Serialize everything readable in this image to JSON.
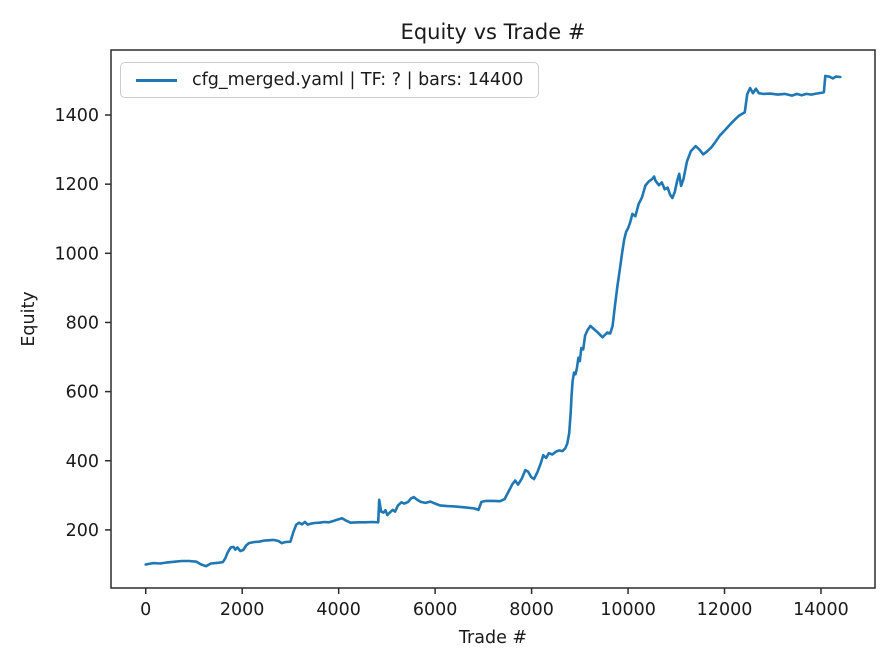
{
  "chart_data": {
    "type": "line",
    "title": "Equity vs Trade #",
    "xlabel": "Trade #",
    "ylabel": "Equity",
    "grid": false,
    "legend": {
      "location": "upper left",
      "entries": [
        "cfg_merged.yaml | TF: ? | bars: 14400"
      ]
    },
    "x_ticks": [
      0,
      2000,
      4000,
      6000,
      8000,
      10000,
      12000,
      14000
    ],
    "y_ticks": [
      200,
      400,
      600,
      800,
      1000,
      1200,
      1400
    ],
    "xlim": [
      -720,
      15120
    ],
    "ylim": [
      32,
      1588
    ],
    "colors": {
      "line": "#1f77b4",
      "axes": "#2b2b2b",
      "text": "#1a1a1a",
      "legend_border": "#cccccc"
    },
    "series": [
      {
        "name": "cfg_merged.yaml | TF: ? | bars: 14400",
        "color": "#1f77b4",
        "points": [
          [
            0,
            100
          ],
          [
            150,
            104
          ],
          [
            300,
            103
          ],
          [
            450,
            106
          ],
          [
            600,
            108
          ],
          [
            750,
            110
          ],
          [
            900,
            110
          ],
          [
            1050,
            108
          ],
          [
            1150,
            100
          ],
          [
            1250,
            95
          ],
          [
            1350,
            103
          ],
          [
            1500,
            105
          ],
          [
            1600,
            107
          ],
          [
            1650,
            118
          ],
          [
            1700,
            135
          ],
          [
            1760,
            149
          ],
          [
            1820,
            151
          ],
          [
            1860,
            143
          ],
          [
            1900,
            149
          ],
          [
            1960,
            139
          ],
          [
            2020,
            142
          ],
          [
            2080,
            155
          ],
          [
            2140,
            162
          ],
          [
            2250,
            165
          ],
          [
            2350,
            166
          ],
          [
            2450,
            169
          ],
          [
            2550,
            170
          ],
          [
            2650,
            171
          ],
          [
            2750,
            168
          ],
          [
            2820,
            162
          ],
          [
            2900,
            165
          ],
          [
            3000,
            166
          ],
          [
            3060,
            193
          ],
          [
            3120,
            215
          ],
          [
            3180,
            221
          ],
          [
            3240,
            216
          ],
          [
            3300,
            223
          ],
          [
            3360,
            215
          ],
          [
            3420,
            218
          ],
          [
            3500,
            220
          ],
          [
            3600,
            221
          ],
          [
            3700,
            223
          ],
          [
            3800,
            222
          ],
          [
            3900,
            226
          ],
          [
            4000,
            231
          ],
          [
            4070,
            234
          ],
          [
            4150,
            227
          ],
          [
            4250,
            221
          ],
          [
            4400,
            222
          ],
          [
            4550,
            222
          ],
          [
            4700,
            223
          ],
          [
            4820,
            222
          ],
          [
            4840,
            287
          ],
          [
            4880,
            253
          ],
          [
            4930,
            250
          ],
          [
            4970,
            257
          ],
          [
            5010,
            243
          ],
          [
            5060,
            250
          ],
          [
            5120,
            258
          ],
          [
            5170,
            253
          ],
          [
            5230,
            271
          ],
          [
            5300,
            280
          ],
          [
            5360,
            276
          ],
          [
            5440,
            281
          ],
          [
            5500,
            291
          ],
          [
            5560,
            295
          ],
          [
            5620,
            288
          ],
          [
            5700,
            281
          ],
          [
            5800,
            278
          ],
          [
            5900,
            282
          ],
          [
            6000,
            276
          ],
          [
            6100,
            271
          ],
          [
            6250,
            269
          ],
          [
            6400,
            268
          ],
          [
            6550,
            266
          ],
          [
            6700,
            264
          ],
          [
            6820,
            262
          ],
          [
            6900,
            258
          ],
          [
            6960,
            281
          ],
          [
            7060,
            284
          ],
          [
            7200,
            284
          ],
          [
            7350,
            283
          ],
          [
            7440,
            289
          ],
          [
            7520,
            310
          ],
          [
            7600,
            332
          ],
          [
            7660,
            343
          ],
          [
            7720,
            331
          ],
          [
            7800,
            349
          ],
          [
            7870,
            373
          ],
          [
            7930,
            368
          ],
          [
            7990,
            353
          ],
          [
            8050,
            347
          ],
          [
            8120,
            367
          ],
          [
            8190,
            393
          ],
          [
            8240,
            416
          ],
          [
            8300,
            408
          ],
          [
            8360,
            422
          ],
          [
            8430,
            418
          ],
          [
            8500,
            426
          ],
          [
            8570,
            430
          ],
          [
            8640,
            428
          ],
          [
            8700,
            436
          ],
          [
            8740,
            450
          ],
          [
            8780,
            480
          ],
          [
            8810,
            540
          ],
          [
            8830,
            590
          ],
          [
            8850,
            630
          ],
          [
            8880,
            655
          ],
          [
            8910,
            650
          ],
          [
            8940,
            668
          ],
          [
            8970,
            698
          ],
          [
            9000,
            688
          ],
          [
            9030,
            726
          ],
          [
            9070,
            722
          ],
          [
            9110,
            762
          ],
          [
            9160,
            778
          ],
          [
            9220,
            790
          ],
          [
            9290,
            781
          ],
          [
            9380,
            770
          ],
          [
            9470,
            757
          ],
          [
            9570,
            771
          ],
          [
            9630,
            768
          ],
          [
            9680,
            790
          ],
          [
            9730,
            850
          ],
          [
            9780,
            905
          ],
          [
            9830,
            955
          ],
          [
            9880,
            1005
          ],
          [
            9920,
            1040
          ],
          [
            9960,
            1062
          ],
          [
            10000,
            1073
          ],
          [
            10040,
            1088
          ],
          [
            10090,
            1114
          ],
          [
            10150,
            1107
          ],
          [
            10220,
            1143
          ],
          [
            10290,
            1162
          ],
          [
            10360,
            1196
          ],
          [
            10430,
            1208
          ],
          [
            10500,
            1215
          ],
          [
            10540,
            1222
          ],
          [
            10570,
            1210
          ],
          [
            10640,
            1197
          ],
          [
            10700,
            1205
          ],
          [
            10760,
            1185
          ],
          [
            10820,
            1190
          ],
          [
            10870,
            1170
          ],
          [
            10920,
            1160
          ],
          [
            10970,
            1178
          ],
          [
            11020,
            1210
          ],
          [
            11060,
            1230
          ],
          [
            11100,
            1195
          ],
          [
            11150,
            1215
          ],
          [
            11220,
            1265
          ],
          [
            11300,
            1295
          ],
          [
            11400,
            1310
          ],
          [
            11480,
            1300
          ],
          [
            11560,
            1286
          ],
          [
            11640,
            1295
          ],
          [
            11720,
            1305
          ],
          [
            11800,
            1320
          ],
          [
            11900,
            1340
          ],
          [
            12000,
            1355
          ],
          [
            12100,
            1370
          ],
          [
            12200,
            1385
          ],
          [
            12300,
            1398
          ],
          [
            12420,
            1408
          ],
          [
            12470,
            1460
          ],
          [
            12530,
            1478
          ],
          [
            12590,
            1463
          ],
          [
            12650,
            1476
          ],
          [
            12710,
            1463
          ],
          [
            12800,
            1461
          ],
          [
            12950,
            1462
          ],
          [
            13100,
            1459
          ],
          [
            13250,
            1461
          ],
          [
            13400,
            1456
          ],
          [
            13500,
            1461
          ],
          [
            13600,
            1457
          ],
          [
            13700,
            1461
          ],
          [
            13800,
            1459
          ],
          [
            13900,
            1462
          ],
          [
            14000,
            1464
          ],
          [
            14060,
            1466
          ],
          [
            14090,
            1513
          ],
          [
            14170,
            1511
          ],
          [
            14250,
            1506
          ],
          [
            14310,
            1511
          ],
          [
            14400,
            1510
          ]
        ]
      }
    ]
  }
}
